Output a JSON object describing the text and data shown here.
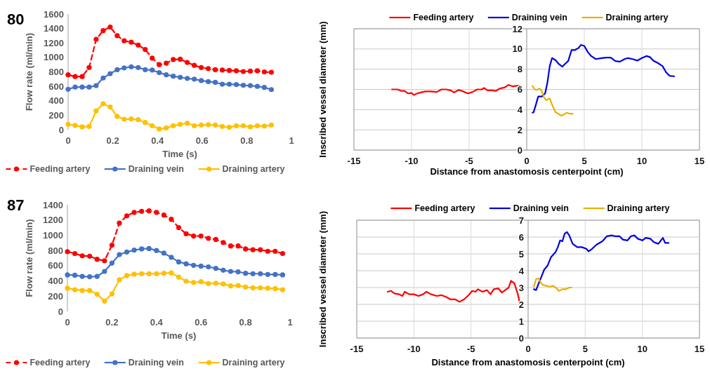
{
  "chart_data": [
    {
      "type": "line",
      "title": "80",
      "xlabel": "Time (s)",
      "ylabel": "Flow rate (ml/min)",
      "xlim": [
        0,
        1
      ],
      "xticks": [
        0,
        0.2,
        0.4,
        0.6,
        0.8,
        1
      ],
      "ylim": [
        0,
        1600
      ],
      "yticks": [
        0,
        200,
        400,
        600,
        800,
        1000,
        1200,
        1400,
        1600
      ],
      "legend": "bottom",
      "marker": "circle",
      "x": [
        0,
        0.0314,
        0.0628,
        0.0941,
        0.1255,
        0.1569,
        0.1883,
        0.2197,
        0.251,
        0.2824,
        0.3138,
        0.3452,
        0.3766,
        0.4079,
        0.4393,
        0.4707,
        0.5021,
        0.5334,
        0.5648,
        0.5962,
        0.6276,
        0.659,
        0.6903,
        0.7217,
        0.7531,
        0.7845,
        0.8159,
        0.8472,
        0.8786,
        0.91
      ],
      "series": [
        {
          "name": "Feeding artery",
          "color": "#ff0000",
          "line_style": "dashed",
          "values": [
            760,
            735,
            735,
            860,
            1250,
            1370,
            1420,
            1300,
            1230,
            1210,
            1170,
            1110,
            990,
            900,
            920,
            970,
            975,
            930,
            890,
            860,
            845,
            830,
            825,
            820,
            815,
            805,
            810,
            815,
            800,
            795
          ]
        },
        {
          "name": "Draining vein",
          "color": "#4472c4",
          "line_style": "solid",
          "values": [
            560,
            590,
            590,
            590,
            610,
            715,
            775,
            830,
            855,
            870,
            860,
            830,
            825,
            790,
            760,
            740,
            725,
            710,
            700,
            680,
            665,
            655,
            630,
            630,
            625,
            615,
            610,
            600,
            585,
            555
          ]
        },
        {
          "name": "Draining artery",
          "color": "#ffc000",
          "line_style": "solid",
          "values": [
            75,
            60,
            40,
            45,
            260,
            360,
            315,
            185,
            145,
            150,
            140,
            100,
            55,
            10,
            25,
            55,
            75,
            90,
            55,
            65,
            70,
            65,
            45,
            35,
            55,
            55,
            40,
            55,
            50,
            65
          ]
        }
      ]
    },
    {
      "type": "line",
      "xlabel": "Distance from anastomosis centerpoint (cm)",
      "ylabel": "Inscribed vessel diameter (mm)",
      "xlim": [
        -15,
        15
      ],
      "xticks": [
        -15,
        -10,
        -5,
        0,
        5,
        10,
        15
      ],
      "ylim": [
        0,
        12
      ],
      "yticks": [
        0,
        2,
        4,
        6,
        8,
        10,
        12
      ],
      "grid": true,
      "legend": "top",
      "marker": "none",
      "series": [
        {
          "name": "Feeding artery",
          "color": "#ff0000",
          "x": [
            -11.7,
            -11.2,
            -10.9,
            -10.6,
            -10.3,
            -10.0,
            -9.8,
            -9.5,
            -9.2,
            -8.8,
            -8.3,
            -7.8,
            -7.4,
            -7.0,
            -6.6,
            -6.3,
            -5.9,
            -5.5,
            -5.1,
            -4.7,
            -4.3,
            -3.9,
            -3.7,
            -3.4,
            -3.0,
            -2.7,
            -2.3,
            -1.9,
            -1.6,
            -1.2,
            -0.9,
            -0.6,
            -0.5
          ],
          "values": [
            6.0,
            6.0,
            5.85,
            5.85,
            5.6,
            5.65,
            5.45,
            5.6,
            5.7,
            5.8,
            5.8,
            5.75,
            6.0,
            6.0,
            5.9,
            5.7,
            5.95,
            5.8,
            5.6,
            5.75,
            6.0,
            6.0,
            6.15,
            5.9,
            5.9,
            5.85,
            6.1,
            6.2,
            6.45,
            6.3,
            6.35,
            6.35,
            6.2
          ]
        },
        {
          "name": "Draining vein",
          "color": "#0000dd",
          "x": [
            0.5,
            0.6,
            0.8,
            1.0,
            1.3,
            1.6,
            1.8,
            2.0,
            2.2,
            2.5,
            2.8,
            3.1,
            3.3,
            3.6,
            3.9,
            4.2,
            4.5,
            4.7,
            5.0,
            5.3,
            5.6,
            6.0,
            6.5,
            6.9,
            7.3,
            7.7,
            8.1,
            8.5,
            8.8,
            9.2,
            9.6,
            10.0,
            10.4,
            10.7,
            11.0,
            11.4,
            11.8,
            12.1,
            12.4,
            12.8
          ],
          "values": [
            3.7,
            3.75,
            4.5,
            5.3,
            5.3,
            5.6,
            6.7,
            8.3,
            9.1,
            8.9,
            8.5,
            8.25,
            8.5,
            8.8,
            9.9,
            9.9,
            10.1,
            10.4,
            10.3,
            9.7,
            9.3,
            9.0,
            9.1,
            9.15,
            9.15,
            8.8,
            8.75,
            9.0,
            9.1,
            9.0,
            8.85,
            9.1,
            9.3,
            9.2,
            8.85,
            8.6,
            8.3,
            7.7,
            7.35,
            7.3
          ]
        },
        {
          "name": "Draining artery",
          "color": "#e8b000",
          "x": [
            0.5,
            0.7,
            0.9,
            1.1,
            1.3,
            1.5,
            1.7,
            2.0,
            2.2,
            2.5,
            2.8,
            3.0,
            3.2,
            3.5,
            3.7,
            4.0
          ],
          "values": [
            6.35,
            6.0,
            5.95,
            6.1,
            5.85,
            5.2,
            4.95,
            5.1,
            4.5,
            3.75,
            3.55,
            3.4,
            3.5,
            3.7,
            3.6,
            3.6
          ]
        }
      ]
    },
    {
      "type": "line",
      "title": "87",
      "xlabel": "Time (s)",
      "ylabel": "Flow rate (ml/min)",
      "xlim": [
        0,
        1
      ],
      "xticks": [
        0,
        0.2,
        0.4,
        0.6,
        0.8,
        1
      ],
      "ylim": [
        0,
        1400
      ],
      "yticks": [
        0,
        200,
        400,
        600,
        800,
        1000,
        1200,
        1400
      ],
      "legend": "bottom",
      "marker": "circle",
      "x": [
        0,
        0.0333,
        0.0667,
        0.1,
        0.1333,
        0.1667,
        0.2,
        0.2333,
        0.2667,
        0.3,
        0.3333,
        0.3667,
        0.4,
        0.4333,
        0.4667,
        0.5,
        0.5333,
        0.5667,
        0.6,
        0.6333,
        0.6667,
        0.7,
        0.7333,
        0.7667,
        0.8,
        0.8333,
        0.8667,
        0.9,
        0.9333,
        0.9667
      ],
      "series": [
        {
          "name": "Feeding artery",
          "color": "#ff0000",
          "line_style": "dashed",
          "values": [
            785,
            760,
            730,
            725,
            685,
            665,
            870,
            1160,
            1255,
            1300,
            1315,
            1320,
            1300,
            1265,
            1210,
            1100,
            1020,
            990,
            990,
            960,
            945,
            905,
            860,
            860,
            820,
            810,
            810,
            790,
            790,
            760
          ]
        },
        {
          "name": "Draining vein",
          "color": "#4472c4",
          "line_style": "solid",
          "values": [
            480,
            475,
            460,
            455,
            460,
            525,
            635,
            745,
            780,
            805,
            820,
            825,
            800,
            765,
            710,
            650,
            625,
            605,
            595,
            585,
            565,
            540,
            525,
            520,
            500,
            495,
            495,
            485,
            485,
            480
          ]
        },
        {
          "name": "Draining artery",
          "color": "#ffc000",
          "line_style": "solid",
          "values": [
            305,
            285,
            275,
            275,
            225,
            135,
            230,
            415,
            470,
            490,
            495,
            495,
            495,
            500,
            505,
            450,
            395,
            380,
            390,
            365,
            370,
            360,
            335,
            340,
            320,
            310,
            310,
            305,
            300,
            285
          ]
        }
      ]
    },
    {
      "type": "line",
      "xlabel": "Distance from anastomosis centerpoint (cm)",
      "ylabel": "Inscribed vessel diameter (mm)",
      "xlim": [
        -15,
        15
      ],
      "xticks": [
        -15,
        -10,
        -5,
        0,
        5,
        10,
        15
      ],
      "ylim": [
        0,
        7
      ],
      "yticks": [
        0,
        1,
        2,
        3,
        4,
        5,
        6,
        7
      ],
      "grid": true,
      "legend": "top",
      "marker": "none",
      "series": [
        {
          "name": "Feeding artery",
          "color": "#ff0000",
          "x": [
            -12.3,
            -12.0,
            -11.7,
            -11.3,
            -11.0,
            -10.8,
            -10.4,
            -10.0,
            -9.6,
            -9.2,
            -8.9,
            -8.5,
            -8.0,
            -7.6,
            -7.2,
            -6.8,
            -6.4,
            -6.0,
            -5.6,
            -5.2,
            -4.9,
            -4.6,
            -4.4,
            -4.0,
            -3.6,
            -3.3,
            -3.0,
            -2.6,
            -2.3,
            -2.0,
            -1.7,
            -1.5,
            -1.2,
            -0.9,
            -0.7,
            -0.5
          ],
          "values": [
            2.75,
            2.8,
            2.65,
            2.6,
            2.5,
            2.75,
            2.6,
            2.6,
            2.5,
            2.6,
            2.75,
            2.6,
            2.5,
            2.55,
            2.45,
            2.3,
            2.3,
            2.15,
            2.3,
            2.55,
            2.8,
            2.75,
            2.9,
            2.75,
            2.85,
            2.6,
            2.9,
            2.95,
            2.7,
            2.85,
            3.0,
            3.4,
            3.25,
            2.6,
            2.0,
            2.15
          ]
        },
        {
          "name": "Draining vein",
          "color": "#0000dd",
          "x": [
            0.5,
            0.7,
            0.9,
            1.2,
            1.4,
            1.7,
            2.0,
            2.4,
            2.6,
            2.8,
            3.0,
            3.2,
            3.4,
            3.6,
            3.9,
            4.3,
            4.7,
            5.1,
            5.3,
            5.6,
            6.0,
            6.5,
            6.9,
            7.3,
            7.6,
            8.0,
            8.3,
            8.7,
            9.0,
            9.3,
            9.6,
            10.0,
            10.3,
            10.7,
            11.0,
            11.4,
            11.8,
            12.0,
            12.3
          ],
          "values": [
            2.9,
            2.85,
            3.2,
            3.7,
            4.05,
            4.3,
            4.8,
            5.1,
            5.4,
            5.8,
            5.75,
            6.2,
            6.3,
            6.1,
            5.6,
            5.4,
            5.4,
            5.3,
            5.15,
            5.3,
            5.55,
            5.75,
            6.05,
            6.1,
            6.05,
            6.05,
            5.85,
            5.8,
            6.05,
            6.1,
            5.9,
            5.8,
            5.95,
            5.9,
            5.7,
            5.6,
            5.95,
            5.65,
            5.65
          ]
        },
        {
          "name": "Draining artery",
          "color": "#e8b000",
          "x": [
            0.5,
            0.7,
            0.9,
            1.1,
            1.3,
            1.6,
            1.9,
            2.2,
            2.5,
            2.7,
            3.0,
            3.3,
            3.6,
            3.8
          ],
          "values": [
            3.05,
            3.5,
            3.55,
            3.3,
            3.15,
            3.1,
            3.05,
            3.1,
            2.95,
            2.8,
            2.9,
            2.9,
            3.0,
            3.0
          ]
        }
      ]
    }
  ]
}
